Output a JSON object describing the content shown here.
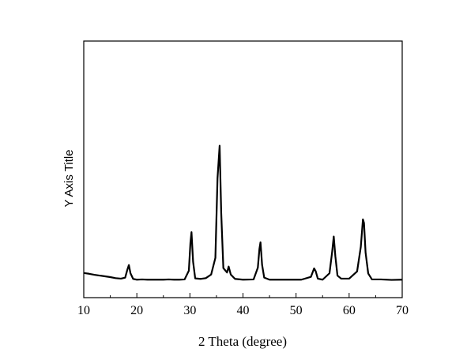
{
  "chart_data": {
    "type": "line",
    "xlabel": "2 Theta (degree)",
    "ylabel": "Y Axis Title",
    "xlim": [
      10,
      70
    ],
    "ylim": [
      0,
      100
    ],
    "x_ticks": [
      10,
      20,
      30,
      40,
      50,
      60,
      70
    ],
    "y_ticks_labeled": false,
    "grid": false,
    "legend": "none",
    "line_color": "#000000",
    "series": [
      {
        "x": [
          10,
          11,
          12,
          13,
          14,
          15,
          16,
          17,
          17.8,
          18.2,
          18.5,
          18.8,
          19.3,
          20,
          21,
          22,
          23,
          24,
          25,
          26,
          27,
          28,
          29,
          29.8,
          30.1,
          30.3,
          30.6,
          31,
          32,
          33,
          34,
          34.8,
          35.2,
          35.6,
          35.9,
          36.3,
          37,
          37.3,
          37.7,
          38.5,
          40,
          42,
          42.8,
          43.1,
          43.3,
          43.6,
          44,
          45,
          47,
          49,
          51,
          52.8,
          53.4,
          53.7,
          54.1,
          55,
          56.3,
          56.8,
          57.1,
          57.4,
          57.8,
          58.5,
          60,
          61.5,
          62.2,
          62.6,
          62.8,
          63.1,
          63.6,
          64.3,
          66,
          68,
          70
        ],
        "y": [
          9.6,
          9.3,
          8.9,
          8.6,
          8.3,
          8.0,
          7.6,
          7.4,
          7.8,
          10.8,
          12.7,
          9.5,
          7.3,
          7.0,
          7.1,
          7.0,
          7.0,
          7.0,
          7.0,
          7.1,
          7.0,
          7.0,
          7.1,
          10.5,
          21.4,
          25.5,
          14.0,
          7.5,
          7.3,
          7.6,
          9.0,
          15.5,
          46.5,
          59.2,
          33.0,
          11.5,
          9.8,
          12.1,
          9.0,
          7.3,
          7.0,
          7.1,
          11.7,
          19.0,
          21.6,
          12.8,
          7.8,
          7.0,
          7.0,
          7.0,
          7.0,
          8.1,
          11.4,
          10.3,
          7.4,
          7.0,
          9.5,
          17.8,
          23.8,
          16.2,
          8.6,
          7.4,
          7.4,
          10.2,
          19.8,
          30.5,
          29.1,
          17.5,
          9.4,
          7.1,
          7.1,
          6.9,
          7.0
        ]
      }
    ]
  }
}
